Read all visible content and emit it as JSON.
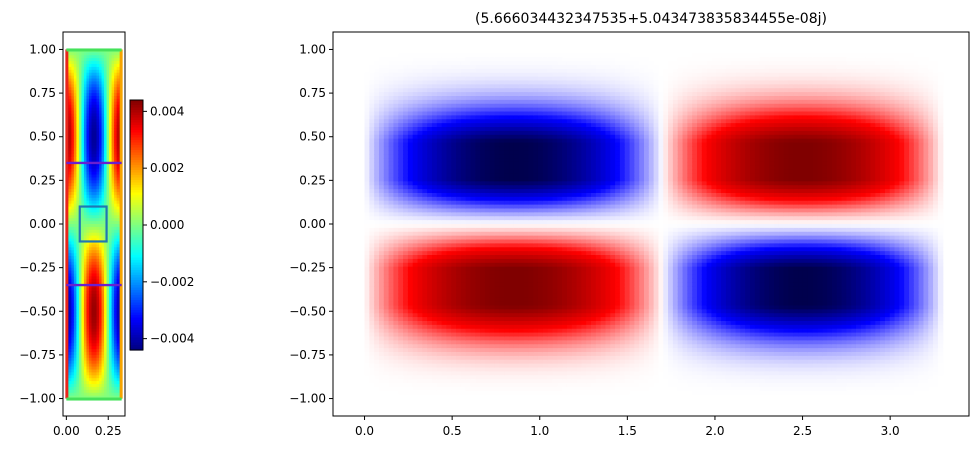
{
  "chart_data": [
    {
      "type": "heatmap",
      "colormap": "jet",
      "xlim": [
        -0.02,
        0.35
      ],
      "ylim": [
        -1.1,
        1.1
      ],
      "x_ticks": [
        0.0,
        0.25
      ],
      "x_tick_labels": [
        "0.00",
        "0.25"
      ],
      "y_ticks": [
        1.0,
        0.75,
        0.5,
        0.25,
        0.0,
        -0.25,
        -0.5,
        -0.75,
        -1.0
      ],
      "y_tick_labels": [
        "1.00",
        "0.75",
        "0.50",
        "0.25",
        "0.00",
        "−0.25",
        "−0.50",
        "−0.75",
        "−1.00"
      ],
      "domain": {
        "x": [
          0.0,
          0.33
        ],
        "y": [
          -1.0,
          1.0
        ]
      },
      "field": {
        "amplitude": 0.0042,
        "x_mode": "cos(2πx/0.33)",
        "y_mode": "sin(πy)"
      },
      "overlays": [
        {
          "type": "line",
          "color": "#6a1fd0",
          "y": 0.35,
          "x": [
            0.0,
            0.33
          ]
        },
        {
          "type": "line",
          "color": "#6a1fd0",
          "y": -0.35,
          "x": [
            0.0,
            0.33
          ]
        },
        {
          "type": "rect",
          "color": "#1f77b4",
          "x": [
            0.08,
            0.24
          ],
          "y": [
            -0.1,
            0.1
          ]
        }
      ],
      "colorbar": {
        "range": [
          -0.0044,
          0.0044
        ],
        "ticks": [
          0.004,
          0.002,
          0.0,
          -0.002,
          -0.004
        ],
        "tick_labels": [
          "0.004",
          "0.002",
          "0.000",
          "−0.002",
          "−0.004"
        ]
      }
    },
    {
      "type": "heatmap",
      "colormap": "seismic",
      "title": "(5.666034432347535+5.043473835834455e-08j)",
      "xlim": [
        -0.18,
        3.45
      ],
      "ylim": [
        -1.1,
        1.1
      ],
      "x_ticks": [
        0.0,
        0.5,
        1.0,
        1.5,
        2.0,
        2.5,
        3.0
      ],
      "x_tick_labels": [
        "0.0",
        "0.5",
        "1.0",
        "1.5",
        "2.0",
        "2.5",
        "3.0"
      ],
      "y_ticks": [
        1.0,
        0.75,
        0.5,
        0.25,
        0.0,
        -0.25,
        -0.5,
        -0.75,
        -1.0
      ],
      "y_tick_labels": [
        "1.00",
        "0.75",
        "0.50",
        "0.25",
        "0.00",
        "−0.25",
        "−0.50",
        "−0.75",
        "−1.00"
      ],
      "domain": {
        "x": [
          0.0,
          3.3
        ],
        "y": [
          -1.0,
          1.0
        ]
      },
      "field": {
        "x_mode": "sin(πx/1.7), second lobe sign flip",
        "y_mode": "odd in y, peak near |y|=0.27",
        "peaks": [
          {
            "x": 0.9,
            "y": 0.27,
            "sign": -1
          },
          {
            "x": 2.55,
            "y": 0.27,
            "sign": 1
          },
          {
            "x": 0.9,
            "y": -0.27,
            "sign": 1
          },
          {
            "x": 2.55,
            "y": -0.27,
            "sign": -1
          }
        ]
      }
    }
  ]
}
